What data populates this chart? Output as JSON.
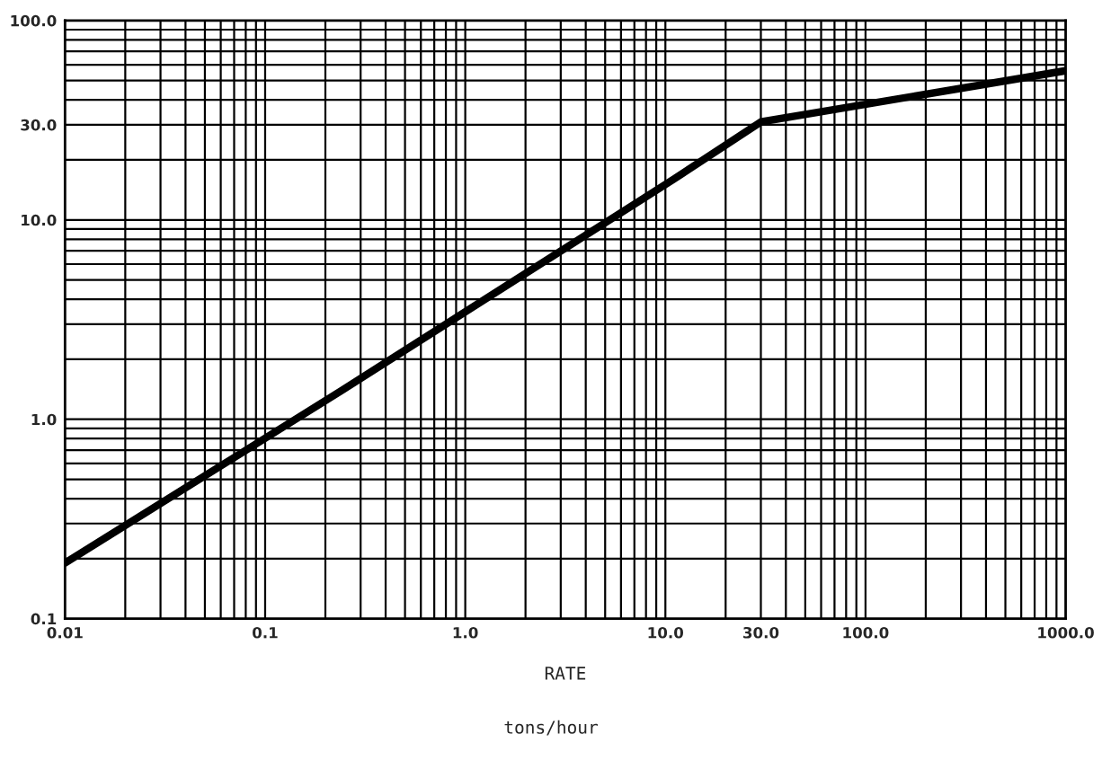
{
  "chart_data": {
    "type": "line",
    "xlabel": "RATE",
    "annotations": [
      "tons/hour"
    ],
    "log": "xy",
    "grid": true,
    "line_style": "solid",
    "marker": "none",
    "xlim": [
      0.01,
      1000
    ],
    "ylim": [
      0.1,
      100
    ],
    "xticks": [
      0.01,
      0.1,
      {
        "value": 1,
        "label": "1.0"
      },
      {
        "value": 10,
        "label": "10.0"
      },
      {
        "value": 30,
        "label": "30.0"
      },
      {
        "value": 100,
        "label": "100.0"
      },
      {
        "value": 1000,
        "label": "1000.0"
      }
    ],
    "yticks": [
      0.1,
      {
        "value": 1,
        "label": "1.0"
      },
      {
        "value": 10,
        "label": "10.0"
      },
      {
        "value": 30,
        "label": "30.0"
      },
      {
        "value": 100,
        "label": "100.0"
      }
    ],
    "series": [
      {
        "color": "#000000",
        "x": [
          0.01,
          0.24,
          11,
          30,
          1000
        ],
        "values": [
          0.19,
          1.39,
          16,
          31,
          56
        ]
      }
    ]
  }
}
